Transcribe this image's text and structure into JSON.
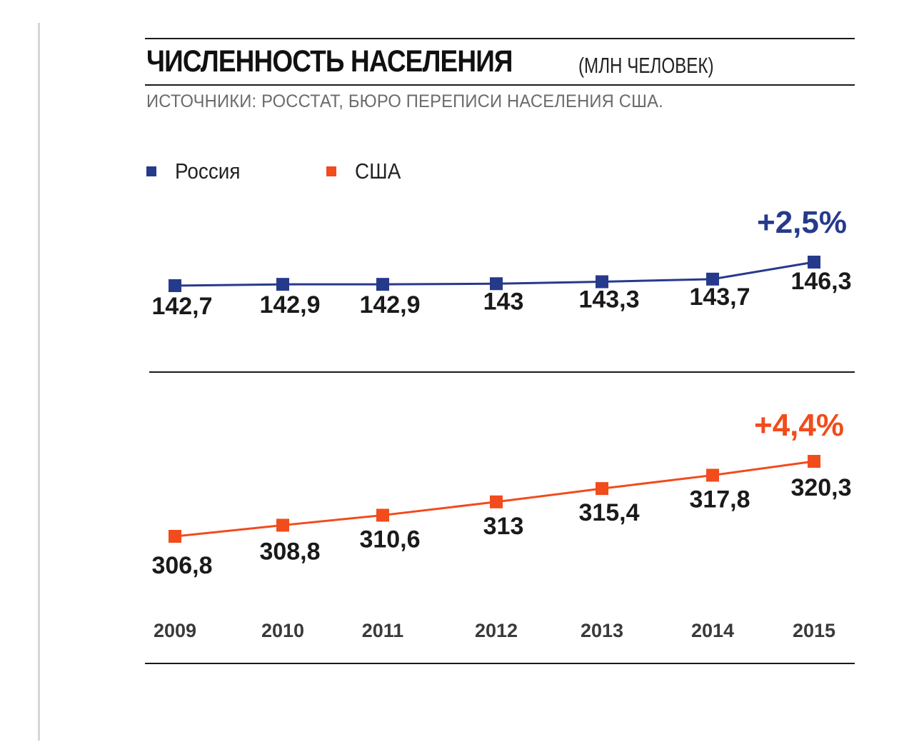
{
  "title": "ЧИСЛЕННОСТЬ НАСЕЛЕНИЯ",
  "title_unit": "(МЛН ЧЕЛОВЕК)",
  "source": "ИСТОЧНИКИ: РОССТАТ, БЮРО ПЕРЕПИСИ НАСЕЛЕНИЯ США.",
  "legend": [
    {
      "label": "Россия",
      "color": "#263a8c"
    },
    {
      "label": "США",
      "color": "#f24b1c"
    }
  ],
  "chart_data": [
    {
      "type": "line",
      "x": [
        "2009",
        "2010",
        "2011",
        "2012",
        "2013",
        "2014",
        "2015"
      ],
      "series": [
        {
          "name": "Россия",
          "color": "#263a8c",
          "values": [
            142.7,
            142.9,
            142.9,
            143,
            143.3,
            143.7,
            146.3
          ],
          "labels": [
            "142,7",
            "142,9",
            "142,9",
            "143",
            "143,3",
            "143,7",
            "146,3"
          ]
        }
      ],
      "annotation": "+2,5%"
    },
    {
      "type": "line",
      "x": [
        "2009",
        "2010",
        "2011",
        "2012",
        "2013",
        "2014",
        "2015"
      ],
      "series": [
        {
          "name": "США",
          "color": "#f24b1c",
          "values": [
            306.8,
            308.8,
            310.6,
            313,
            315.4,
            317.8,
            320.3
          ],
          "labels": [
            "306,8",
            "308,8",
            "310,6",
            "313",
            "315,4",
            "317,8",
            "320,3"
          ]
        }
      ],
      "annotation": "+4,4%"
    }
  ]
}
